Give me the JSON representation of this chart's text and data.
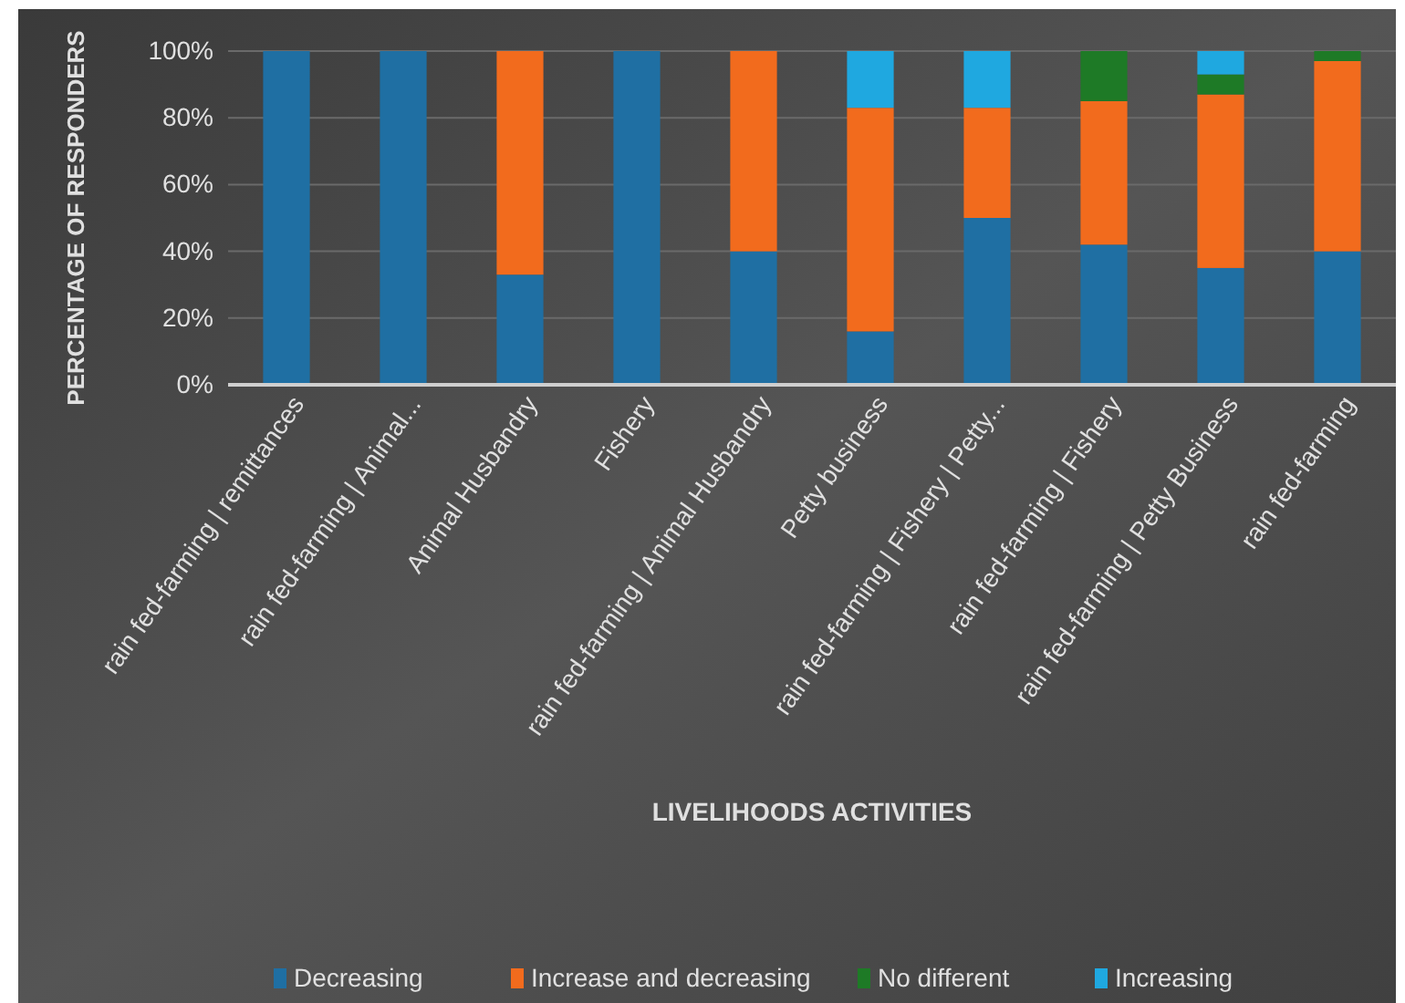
{
  "chart_data": {
    "type": "bar",
    "stacked": true,
    "xlabel": "LIVELIHOODS ACTIVITIES",
    "ylabel": "PERCENTAGE OF RESPONDERS",
    "categories": [
      "rain fed-farming | remittances",
      "rain fed-farming | Animal...",
      "Animal Husbandry",
      "Fishery",
      "rain fed-farming | Animal Husbandry",
      "Petty business",
      "rain fed-farming | Fishery | Petty...",
      "rain fed-farming | Fishery",
      "rain fed-farming | Petty Business",
      "rain fed-farming"
    ],
    "series": [
      {
        "name": "Decreasing",
        "color": "#1f6fa3",
        "values": [
          100,
          100,
          33,
          100,
          40,
          16,
          50,
          42,
          35,
          40
        ]
      },
      {
        "name": "Increase and decreasing",
        "color": "#f26b1d",
        "values": [
          0,
          0,
          67,
          0,
          60,
          67,
          33,
          43,
          52,
          57
        ]
      },
      {
        "name": "No different",
        "color": "#1e7a26",
        "values": [
          0,
          0,
          0,
          0,
          0,
          0,
          0,
          15,
          6,
          3
        ]
      },
      {
        "name": "Increasing",
        "color": "#1fa8e0",
        "values": [
          0,
          0,
          0,
          0,
          0,
          17,
          17,
          0,
          7,
          0
        ]
      }
    ],
    "ylim": [
      0,
      100
    ],
    "yticks": [
      {
        "value": 0,
        "label": "0%"
      },
      {
        "value": 20,
        "label": "20%"
      },
      {
        "value": 40,
        "label": "40%"
      },
      {
        "value": 60,
        "label": "60%"
      },
      {
        "value": 80,
        "label": "80%"
      },
      {
        "value": 100,
        "label": "100%"
      }
    ],
    "grid": "y",
    "legend": "bottom"
  }
}
